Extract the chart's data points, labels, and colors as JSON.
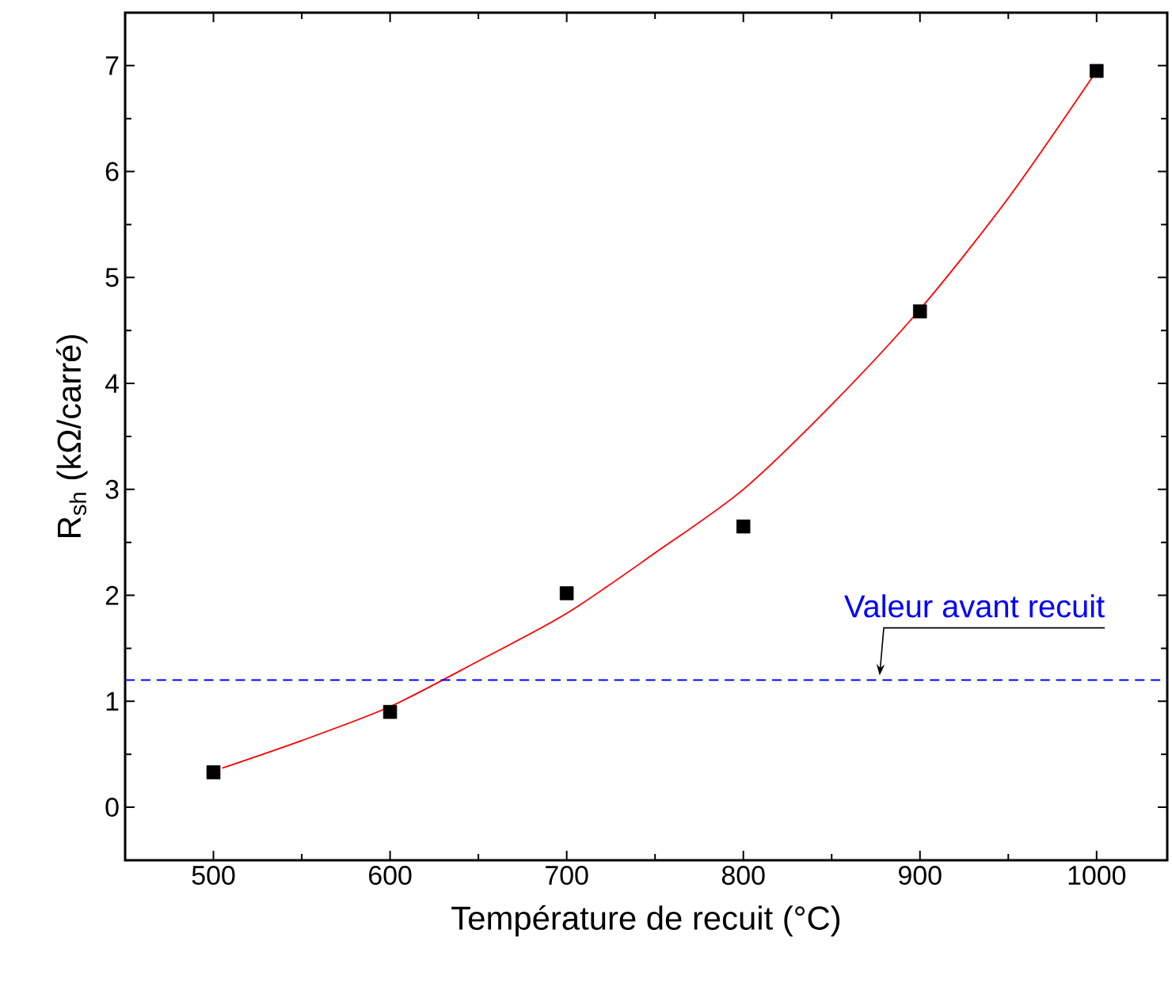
{
  "chart_data": {
    "type": "scatter",
    "xlabel": "Température de recuit (°C)",
    "ylabel": "R$_{sh}$ (kΩ/carré)",
    "xlim": [
      450,
      1040
    ],
    "ylim": [
      -0.5,
      7.5
    ],
    "xticks": [
      500,
      600,
      700,
      800,
      900,
      1000
    ],
    "yticks": [
      0,
      1,
      2,
      3,
      4,
      5,
      6,
      7
    ],
    "series": [
      {
        "color": "#000000",
        "marker": "square",
        "x": [
          500,
          600,
          700,
          800,
          900,
          1000
        ],
        "values": [
          0.33,
          0.9,
          2.02,
          2.65,
          4.68,
          6.95
        ]
      },
      {
        "type": "line",
        "color": "#ff0000",
        "marker": "none",
        "line_style": "solid",
        "x": [
          505,
          550,
          600,
          650,
          700,
          750,
          800,
          850,
          900,
          950,
          1000
        ],
        "values": [
          0.37,
          0.63,
          0.95,
          1.38,
          1.83,
          2.4,
          3.0,
          3.8,
          4.7,
          5.75,
          6.95
        ]
      }
    ],
    "ref_lines": [
      {
        "axis": "y",
        "value": 1.2,
        "label": "Valeur avant recuit",
        "color": "#0000ff",
        "line_style": "dashed"
      }
    ]
  }
}
